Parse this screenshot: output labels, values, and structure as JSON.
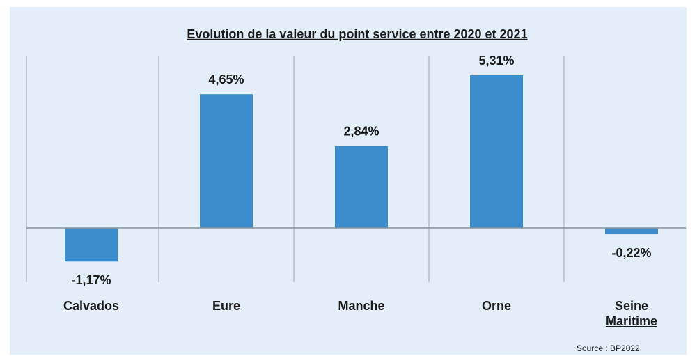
{
  "chart_data": {
    "type": "bar",
    "title": "Evolution de la valeur du point service entre 2020 et  2021",
    "categories": [
      "Calvados",
      "Eure",
      "Manche",
      "Orne",
      "Seine Maritime"
    ],
    "values": [
      -1.17,
      4.65,
      2.84,
      5.31,
      -0.22
    ],
    "value_labels": [
      "-1,17%",
      "4,65%",
      "2,84%",
      "5,31%",
      "-0,22%"
    ],
    "color": "#3a8ccc",
    "source": "Source : BP2022"
  }
}
